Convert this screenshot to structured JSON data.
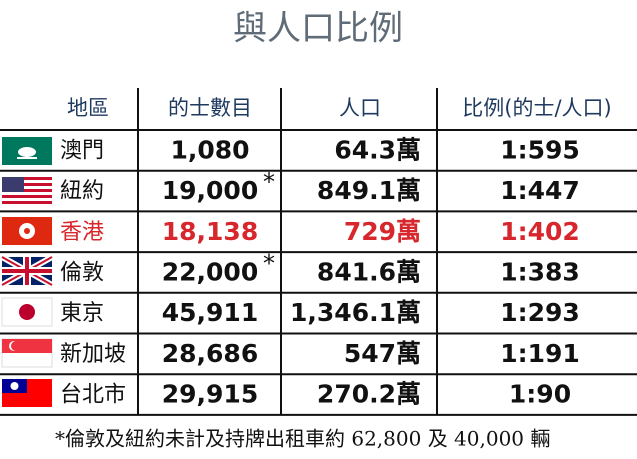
{
  "header": {
    "title": "與人口比例"
  },
  "table": {
    "columns": [
      "地區",
      "的士數目",
      "人口",
      "比例(的士/人口)"
    ],
    "rows": [
      {
        "city": "澳門",
        "taxis": "1,080",
        "population": "64.3萬",
        "ratio": "1:595"
      },
      {
        "city": "紐約",
        "taxis": "19,000",
        "taxis_note": "*",
        "population": "849.1萬",
        "ratio": "1:447"
      },
      {
        "city": "香港",
        "taxis": "18,138",
        "population": "729萬",
        "ratio": "1:402",
        "highlight": true
      },
      {
        "city": "倫敦",
        "taxis": "22,000",
        "taxis_note": "*",
        "population": "841.6萬",
        "ratio": "1:383"
      },
      {
        "city": "東京",
        "taxis": "45,911",
        "population": "1,346.1萬",
        "ratio": "1:293"
      },
      {
        "city": "新加坡",
        "taxis": "28,686",
        "population": "547萬",
        "ratio": "1:191"
      },
      {
        "city": "台北市",
        "taxis": "29,915",
        "population": "270.2萬",
        "ratio": "1:90"
      }
    ],
    "highlight_color": "#d7262c"
  },
  "footnote": "*倫敦及紐約未計及持牌出租車約 62,800 及 40,000 輛"
}
